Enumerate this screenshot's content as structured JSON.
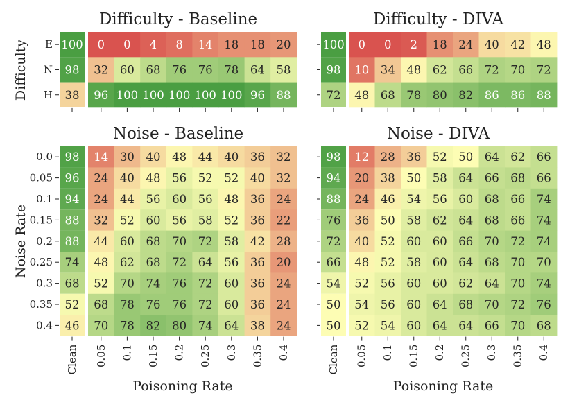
{
  "colors": {
    "low": "#d9534f",
    "mid": "#fdfdb4",
    "high": "#4a9e42"
  },
  "axes": {
    "xlabel": "Poisoning Rate",
    "ylabel_difficulty": "Difficulty",
    "ylabel_noise": "Noise Rate"
  },
  "chart_data": [
    {
      "type": "heatmap",
      "title": "Difficulty - Baseline",
      "clean_label": "Clean",
      "x": [
        "0.05",
        "0.1",
        "0.15",
        "0.2",
        "0.25",
        "0.3",
        "0.35",
        "0.4"
      ],
      "y": [
        "E",
        "N",
        "H"
      ],
      "clean": [
        100,
        98,
        38
      ],
      "values": [
        [
          0,
          0,
          4,
          8,
          14,
          18,
          18,
          20
        ],
        [
          32,
          60,
          68,
          76,
          76,
          78,
          64,
          58
        ],
        [
          96,
          100,
          100,
          100,
          100,
          100,
          96,
          88
        ]
      ]
    },
    {
      "type": "heatmap",
      "title": "Difficulty - DIVA",
      "clean_label": "Clean",
      "x": [
        "0.05",
        "0.1",
        "0.15",
        "0.2",
        "0.25",
        "0.3",
        "0.35",
        "0.4"
      ],
      "y": [
        "E",
        "N",
        "H"
      ],
      "clean": [
        100,
        98,
        72
      ],
      "values": [
        [
          0,
          0,
          2,
          18,
          24,
          40,
          42,
          48
        ],
        [
          10,
          34,
          48,
          62,
          66,
          72,
          70,
          72
        ],
        [
          48,
          68,
          78,
          80,
          82,
          86,
          86,
          88
        ]
      ]
    },
    {
      "type": "heatmap",
      "title": "Noise - Baseline",
      "clean_label": "Clean",
      "x": [
        "0.05",
        "0.1",
        "0.15",
        "0.2",
        "0.25",
        "0.3",
        "0.35",
        "0.4"
      ],
      "y": [
        "0.0",
        "0.05",
        "0.1",
        "0.15",
        "0.2",
        "0.25",
        "0.3",
        "0.35",
        "0.4"
      ],
      "clean": [
        98,
        96,
        94,
        88,
        88,
        74,
        68,
        52,
        46
      ],
      "values": [
        [
          14,
          30,
          40,
          48,
          44,
          40,
          36,
          32
        ],
        [
          24,
          40,
          48,
          56,
          52,
          52,
          40,
          32
        ],
        [
          24,
          44,
          56,
          60,
          56,
          48,
          36,
          24
        ],
        [
          32,
          52,
          60,
          56,
          58,
          52,
          36,
          22
        ],
        [
          44,
          60,
          68,
          70,
          72,
          58,
          42,
          28
        ],
        [
          48,
          62,
          68,
          72,
          64,
          56,
          36,
          20
        ],
        [
          52,
          70,
          74,
          76,
          72,
          60,
          36,
          24
        ],
        [
          68,
          78,
          76,
          76,
          72,
          60,
          36,
          24
        ],
        [
          70,
          78,
          82,
          80,
          74,
          64,
          38,
          24
        ]
      ]
    },
    {
      "type": "heatmap",
      "title": "Noise - DIVA",
      "clean_label": "Clean",
      "x": [
        "0.05",
        "0.1",
        "0.15",
        "0.2",
        "0.25",
        "0.3",
        "0.35",
        "0.4"
      ],
      "y": [
        "0.0",
        "0.05",
        "0.1",
        "0.15",
        "0.2",
        "0.25",
        "0.3",
        "0.35",
        "0.4"
      ],
      "clean": [
        98,
        94,
        88,
        76,
        72,
        66,
        54,
        50,
        50
      ],
      "values": [
        [
          12,
          28,
          36,
          52,
          50,
          64,
          62,
          66
        ],
        [
          20,
          38,
          50,
          58,
          64,
          66,
          68,
          66
        ],
        [
          24,
          46,
          54,
          56,
          60,
          68,
          66,
          74
        ],
        [
          36,
          50,
          58,
          62,
          64,
          68,
          66,
          74
        ],
        [
          40,
          52,
          60,
          60,
          66,
          70,
          72,
          74
        ],
        [
          48,
          52,
          58,
          60,
          64,
          68,
          70,
          70
        ],
        [
          52,
          56,
          60,
          60,
          62,
          64,
          70,
          74
        ],
        [
          54,
          56,
          60,
          64,
          68,
          70,
          72,
          76
        ],
        [
          52,
          54,
          60,
          64,
          64,
          66,
          70,
          68
        ]
      ]
    }
  ]
}
